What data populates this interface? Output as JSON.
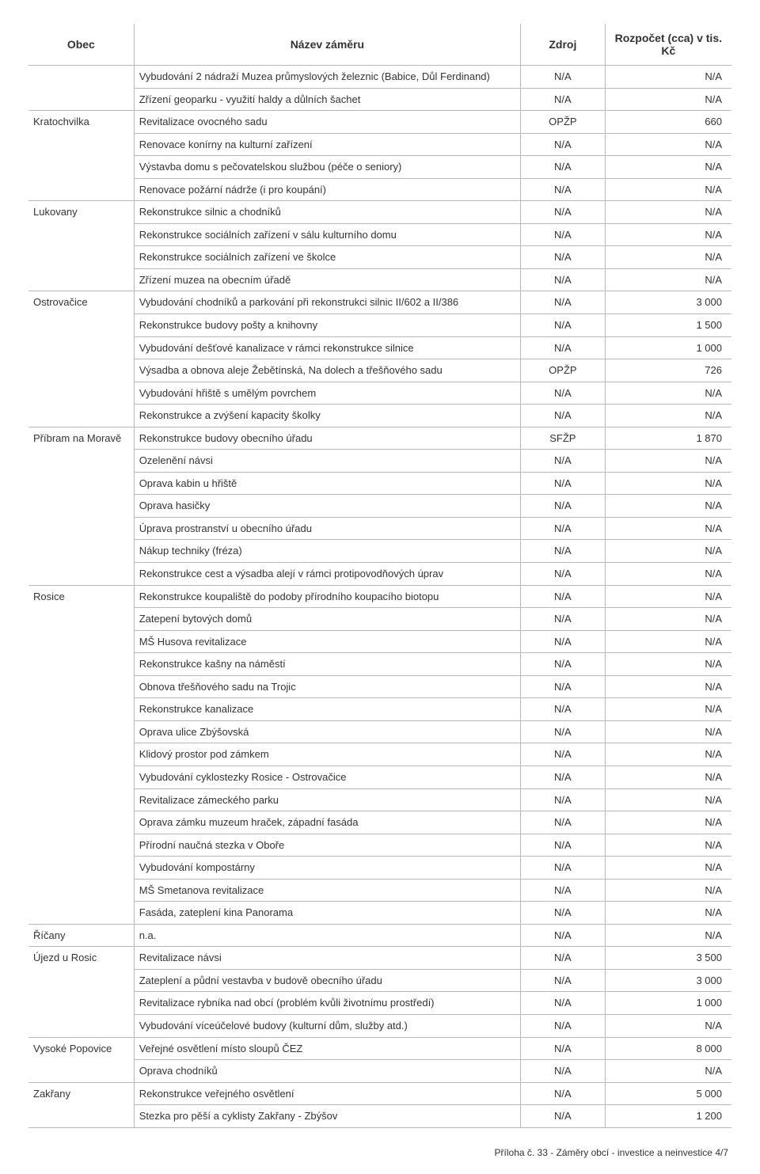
{
  "columns": {
    "obec": "Obec",
    "nazev": "Název záměru",
    "zdroj": "Zdroj",
    "rozpocet": "Rozpočet (cca) v tis. Kč"
  },
  "groups": [
    {
      "obec": "",
      "rows": [
        {
          "nazev": "Vybudování 2 nádraží Muzea průmyslových železnic (Babice, Důl Ferdinand)",
          "zdroj": "N/A",
          "rozp": "N/A"
        },
        {
          "nazev": "Zřízení geoparku - využití haldy a důlních šachet",
          "zdroj": "N/A",
          "rozp": "N/A"
        }
      ]
    },
    {
      "obec": "Kratochvilka",
      "rows": [
        {
          "nazev": "Revitalizace ovocného sadu",
          "zdroj": "OPŽP",
          "rozp": "660"
        },
        {
          "nazev": "Renovace konírny na kulturní zařízení",
          "zdroj": "N/A",
          "rozp": "N/A"
        },
        {
          "nazev": "Výstavba domu s pečovatelskou službou (péče o seniory)",
          "zdroj": "N/A",
          "rozp": "N/A"
        },
        {
          "nazev": "Renovace požární nádrže (i pro koupání)",
          "zdroj": "N/A",
          "rozp": "N/A"
        }
      ]
    },
    {
      "obec": "Lukovany",
      "rows": [
        {
          "nazev": "Rekonstrukce silnic a chodníků",
          "zdroj": "N/A",
          "rozp": "N/A"
        },
        {
          "nazev": "Rekonstrukce sociálních zařízení v sálu kulturního domu",
          "zdroj": "N/A",
          "rozp": "N/A"
        },
        {
          "nazev": "Rekonstrukce sociálních zařízení ve školce",
          "zdroj": "N/A",
          "rozp": "N/A"
        },
        {
          "nazev": "Zřízení muzea na obecním úřadě",
          "zdroj": "N/A",
          "rozp": "N/A"
        }
      ]
    },
    {
      "obec": "Ostrovačice",
      "rows": [
        {
          "nazev": "Vybudování chodníků a parkování při rekonstrukci silnic II/602 a II/386",
          "zdroj": "N/A",
          "rozp": "3 000"
        },
        {
          "nazev": "Rekonstrukce budovy pošty a knihovny",
          "zdroj": "N/A",
          "rozp": "1 500"
        },
        {
          "nazev": "Vybudování dešťové kanalizace v rámci rekonstrukce silnice",
          "zdroj": "N/A",
          "rozp": "1 000"
        },
        {
          "nazev": "Výsadba a obnova aleje Žebětínská, Na dolech a třešňového sadu",
          "zdroj": "OPŽP",
          "rozp": "726"
        },
        {
          "nazev": "Vybudování hřiště s umělým povrchem",
          "zdroj": "N/A",
          "rozp": "N/A"
        },
        {
          "nazev": "Rekonstrukce a zvýšení kapacity školky",
          "zdroj": "N/A",
          "rozp": "N/A"
        }
      ]
    },
    {
      "obec": "Příbram na Moravě",
      "rows": [
        {
          "nazev": "Rekonstrukce budovy obecního úřadu",
          "zdroj": "SFŽP",
          "rozp": "1 870"
        },
        {
          "nazev": "Ozelenění návsi",
          "zdroj": "N/A",
          "rozp": "N/A"
        },
        {
          "nazev": "Oprava kabin u hřiště",
          "zdroj": "N/A",
          "rozp": "N/A"
        },
        {
          "nazev": "Oprava hasičky",
          "zdroj": "N/A",
          "rozp": "N/A"
        },
        {
          "nazev": "Úprava prostranství u obecního úřadu",
          "zdroj": "N/A",
          "rozp": "N/A"
        },
        {
          "nazev": "Nákup techniky (fréza)",
          "zdroj": "N/A",
          "rozp": "N/A"
        },
        {
          "nazev": "Rekonstrukce cest a výsadba alejí v rámci protipovodňových úprav",
          "zdroj": "N/A",
          "rozp": "N/A"
        }
      ]
    },
    {
      "obec": "Rosice",
      "rows": [
        {
          "nazev": "Rekonstrukce koupaliště do podoby přírodního koupacího biotopu",
          "zdroj": "N/A",
          "rozp": "N/A"
        },
        {
          "nazev": "Zatepení bytových domů",
          "zdroj": "N/A",
          "rozp": "N/A"
        },
        {
          "nazev": "MŠ Husova revitalizace",
          "zdroj": "N/A",
          "rozp": "N/A"
        },
        {
          "nazev": "Rekonstrukce kašny na náměstí",
          "zdroj": "N/A",
          "rozp": "N/A"
        },
        {
          "nazev": "Obnova třešňového sadu na Trojic",
          "zdroj": "N/A",
          "rozp": "N/A"
        },
        {
          "nazev": "Rekonstrukce kanalizace",
          "zdroj": "N/A",
          "rozp": "N/A"
        },
        {
          "nazev": "Oprava ulice Zbýšovská",
          "zdroj": "N/A",
          "rozp": "N/A"
        },
        {
          "nazev": "Klidový prostor pod zámkem",
          "zdroj": "N/A",
          "rozp": "N/A"
        },
        {
          "nazev": "Vybudování cyklostezky Rosice - Ostrovačice",
          "zdroj": "N/A",
          "rozp": "N/A"
        },
        {
          "nazev": "Revitalizace zámeckého parku",
          "zdroj": "N/A",
          "rozp": "N/A"
        },
        {
          "nazev": "Oprava zámku muzeum hraček, západní fasáda",
          "zdroj": "N/A",
          "rozp": "N/A"
        },
        {
          "nazev": "Přírodní naučná stezka v Oboře",
          "zdroj": "N/A",
          "rozp": "N/A"
        },
        {
          "nazev": "Vybudování kompostárny",
          "zdroj": "N/A",
          "rozp": "N/A"
        },
        {
          "nazev": "MŠ Smetanova revitalizace",
          "zdroj": "N/A",
          "rozp": "N/A"
        },
        {
          "nazev": "Fasáda, zateplení kina Panorama",
          "zdroj": "N/A",
          "rozp": "N/A"
        }
      ]
    },
    {
      "obec": "Říčany",
      "rows": [
        {
          "nazev": "n.a.",
          "zdroj": "N/A",
          "rozp": "N/A"
        }
      ]
    },
    {
      "obec": "Újezd u Rosic",
      "rows": [
        {
          "nazev": "Revitalizace návsi",
          "zdroj": "N/A",
          "rozp": "3 500"
        },
        {
          "nazev": "Zateplení a půdní vestavba v budově obecního úřadu",
          "zdroj": "N/A",
          "rozp": "3 000"
        },
        {
          "nazev": "Revitalizace rybníka nad obcí (problém kvůli životnímu prostředí)",
          "zdroj": "N/A",
          "rozp": "1 000"
        },
        {
          "nazev": "Vybudování víceúčelové budovy (kulturní dům, služby atd.)",
          "zdroj": "N/A",
          "rozp": "N/A"
        }
      ]
    },
    {
      "obec": "Vysoké Popovice",
      "rows": [
        {
          "nazev": "Veřejné osvětlení místo sloupů ČEZ",
          "zdroj": "N/A",
          "rozp": "8 000"
        },
        {
          "nazev": "Oprava chodníků",
          "zdroj": "N/A",
          "rozp": "N/A"
        }
      ]
    },
    {
      "obec": "Zakřany",
      "rows": [
        {
          "nazev": "Rekonstrukce veřejného osvětlení",
          "zdroj": "N/A",
          "rozp": "5 000"
        },
        {
          "nazev": "Stezka pro pěší a cyklisty Zakřany - Zbýšov",
          "zdroj": "N/A",
          "rozp": "1 200"
        }
      ]
    }
  ],
  "footer": "Příloha č. 33 - Záměry obcí - investice a neinvestice 4/7",
  "style": {
    "font_family": "Arial",
    "header_fontsize": 14,
    "cell_fontsize": 13,
    "border_color": "#b8b8b8",
    "text_color": "#333333",
    "background": "#ffffff"
  }
}
